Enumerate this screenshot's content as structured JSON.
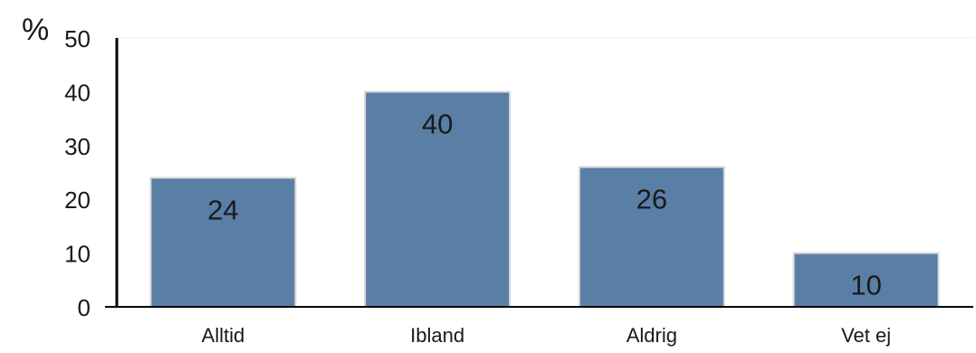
{
  "chart_data": {
    "type": "bar",
    "categories": [
      "Alltid",
      "Ibland",
      "Aldrig",
      "Vet ej"
    ],
    "values": [
      24,
      40,
      26,
      10
    ],
    "ylabel": "%",
    "ylim": [
      0,
      50
    ],
    "yticks": [
      0,
      10,
      20,
      30,
      40,
      50
    ],
    "data_labels": [
      "24",
      "40",
      "26",
      "10"
    ],
    "grid": false,
    "legend": "none",
    "colors": {
      "bar": "#5a7fa6",
      "bar_outline": "#d9d9d9",
      "axis": "#000000"
    }
  }
}
